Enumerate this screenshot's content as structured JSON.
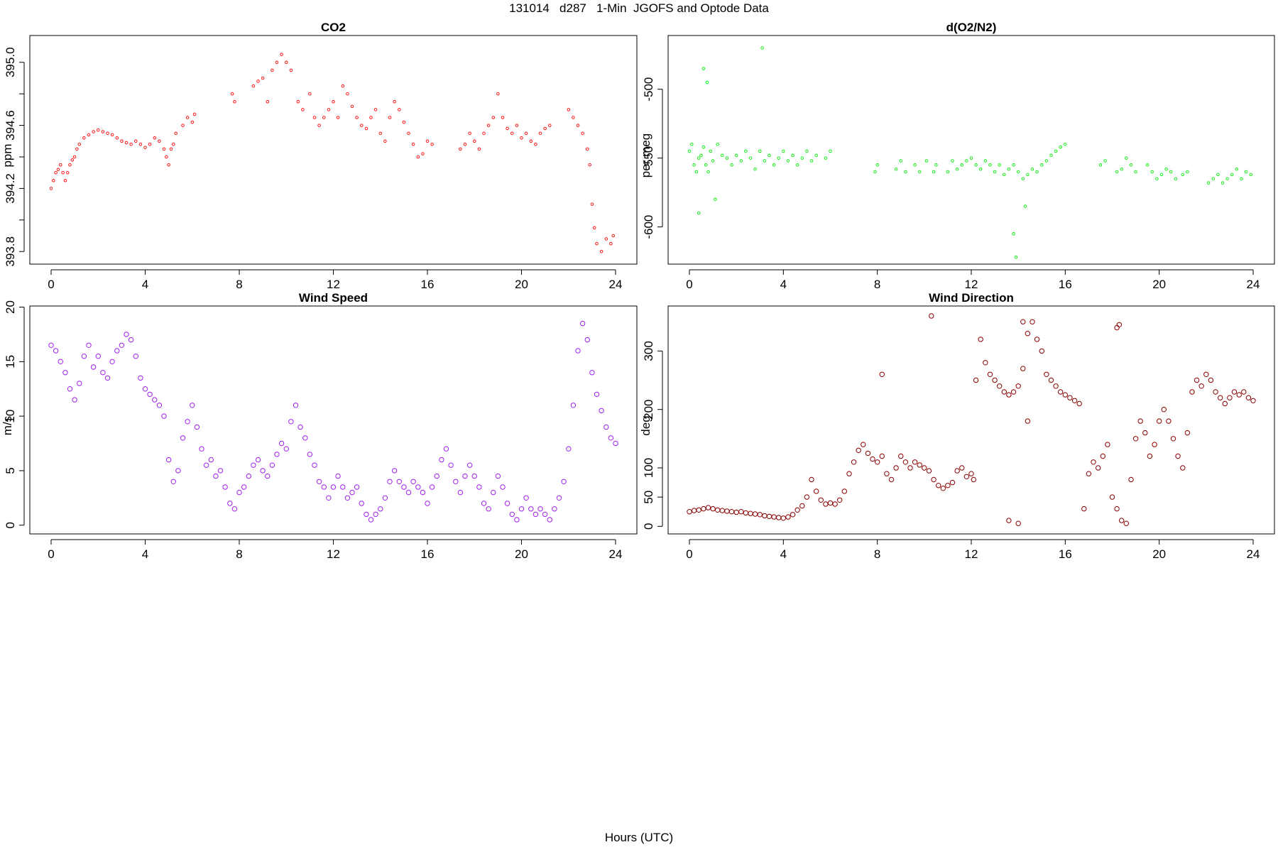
{
  "figure": {
    "title": "131014   d287   1-Min  JGOFS and Optode Data",
    "xlabel": "Hours (UTC)"
  },
  "chart_data": [
    {
      "type": "scatter",
      "title": "CO2",
      "xlabel": "",
      "ylabel": "ppm",
      "xlim": [
        0,
        24
      ],
      "ylim": [
        393.72,
        395.17
      ],
      "xticks": [
        0,
        4,
        8,
        12,
        16,
        20,
        24
      ],
      "yticks": [
        "393.8",
        "394.2",
        "394.6",
        "395.0"
      ],
      "ytick_values": [
        393.8,
        394.2,
        394.6,
        395.0
      ],
      "minor_yticks": [
        394.0,
        394.4,
        394.8
      ],
      "color": "#ff0000",
      "marker_size": "small",
      "series": [
        {
          "x": [
            0.0,
            0.1,
            0.2,
            0.3,
            0.4,
            0.5,
            0.6,
            0.7,
            0.8,
            0.9,
            1.0,
            1.1,
            1.2,
            1.4,
            1.6,
            1.8,
            2.0,
            2.2,
            2.4,
            2.6,
            2.8,
            3.0,
            3.2,
            3.4,
            3.6,
            3.8,
            4.0,
            4.2,
            4.4,
            4.6,
            4.8,
            4.9,
            5.0,
            5.1,
            5.2,
            5.3,
            5.6,
            5.8,
            6.0,
            6.1,
            7.7,
            7.8,
            8.6,
            8.8,
            9.0,
            9.2,
            9.4,
            9.6,
            9.8,
            10.0,
            10.2,
            10.5,
            10.7,
            11.0,
            11.2,
            11.4,
            11.6,
            11.8,
            12.0,
            12.2,
            12.4,
            12.6,
            12.8,
            13.0,
            13.2,
            13.4,
            13.6,
            13.8,
            14.0,
            14.2,
            14.4,
            14.6,
            14.8,
            15.0,
            15.2,
            15.4,
            15.6,
            15.8,
            16.0,
            16.2,
            17.4,
            17.6,
            17.8,
            18.0,
            18.2,
            18.4,
            18.6,
            18.8,
            19.0,
            19.2,
            19.4,
            19.6,
            19.8,
            20.0,
            20.2,
            20.4,
            20.6,
            20.8,
            21.0,
            21.2,
            22.0,
            22.2,
            22.4,
            22.6,
            22.8,
            22.9,
            23.0,
            23.1,
            23.2,
            23.4,
            23.6,
            23.8,
            23.9
          ],
          "y": [
            394.2,
            394.25,
            394.3,
            394.32,
            394.35,
            394.3,
            394.25,
            394.3,
            394.35,
            394.38,
            394.4,
            394.45,
            394.48,
            394.52,
            394.54,
            394.56,
            394.57,
            394.56,
            394.55,
            394.54,
            394.52,
            394.5,
            394.49,
            394.48,
            394.5,
            394.48,
            394.46,
            394.48,
            394.52,
            394.5,
            394.45,
            394.4,
            394.35,
            394.45,
            394.48,
            394.55,
            394.6,
            394.65,
            394.62,
            394.67,
            394.8,
            394.75,
            394.85,
            394.88,
            394.9,
            394.75,
            394.95,
            395.0,
            395.05,
            395.0,
            394.95,
            394.75,
            394.7,
            394.8,
            394.65,
            394.6,
            394.65,
            394.7,
            394.75,
            394.65,
            394.85,
            394.8,
            394.72,
            394.65,
            394.6,
            394.58,
            394.65,
            394.7,
            394.55,
            394.5,
            394.65,
            394.75,
            394.7,
            394.62,
            394.55,
            394.48,
            394.4,
            394.42,
            394.5,
            394.48,
            394.45,
            394.48,
            394.55,
            394.5,
            394.45,
            394.55,
            394.6,
            394.65,
            394.8,
            394.65,
            394.58,
            394.55,
            394.6,
            394.52,
            394.55,
            394.5,
            394.48,
            394.55,
            394.58,
            394.6,
            394.7,
            394.65,
            394.6,
            394.55,
            394.45,
            394.35,
            394.1,
            393.95,
            393.85,
            393.8,
            393.88,
            393.85,
            393.9
          ]
        }
      ]
    },
    {
      "type": "scatter",
      "title": "d(O2/N2)",
      "xlabel": "",
      "ylabel": "per meg",
      "xlim": [
        0,
        24
      ],
      "ylim": [
        -627,
        -461
      ],
      "xticks": [
        0,
        4,
        8,
        12,
        16,
        20,
        24
      ],
      "yticks": [
        "-600",
        "-550",
        "-500"
      ],
      "ytick_values": [
        -600,
        -550,
        -500
      ],
      "minor_yticks": [],
      "color": "#00ee00",
      "marker_size": "small",
      "series": [
        {
          "x": [
            0.0,
            0.1,
            0.2,
            0.3,
            0.4,
            0.5,
            0.6,
            0.7,
            0.8,
            0.9,
            1.0,
            1.2,
            1.4,
            1.6,
            1.8,
            2.0,
            2.2,
            2.4,
            2.6,
            2.8,
            3.0,
            3.2,
            3.4,
            3.6,
            3.8,
            4.0,
            4.2,
            4.4,
            4.6,
            4.8,
            5.0,
            5.2,
            5.4,
            5.8,
            6.0,
            7.9,
            8.0,
            8.8,
            9.0,
            9.2,
            9.6,
            9.8,
            10.1,
            10.4,
            10.5,
            11.0,
            11.2,
            11.4,
            11.6,
            11.8,
            12.0,
            12.2,
            12.4,
            12.6,
            12.8,
            13.0,
            13.2,
            13.4,
            13.6,
            13.8,
            14.0,
            14.2,
            14.4,
            14.6,
            14.8,
            15.0,
            15.2,
            15.4,
            15.6,
            15.8,
            16.0,
            17.5,
            17.7,
            18.2,
            18.4,
            18.6,
            18.8,
            19.0,
            19.5,
            19.7,
            19.9,
            20.1,
            20.3,
            20.5,
            20.7,
            21.0,
            21.2,
            22.1,
            22.3,
            22.5,
            22.7,
            22.9,
            23.1,
            23.3,
            23.5,
            23.7,
            23.9,
            0.6,
            0.75,
            1.1,
            3.1,
            0.4,
            13.8,
            13.9,
            14.3
          ],
          "y": [
            -545,
            -540,
            -555,
            -560,
            -550,
            -548,
            -542,
            -555,
            -560,
            -545,
            -552,
            -540,
            -548,
            -550,
            -555,
            -548,
            -552,
            -545,
            -550,
            -558,
            -545,
            -552,
            -548,
            -555,
            -550,
            -545,
            -552,
            -548,
            -555,
            -550,
            -545,
            -552,
            -548,
            -550,
            -545,
            -560,
            -555,
            -558,
            -552,
            -560,
            -555,
            -560,
            -552,
            -560,
            -555,
            -560,
            -552,
            -558,
            -555,
            -552,
            -550,
            -555,
            -558,
            -552,
            -555,
            -560,
            -555,
            -562,
            -558,
            -555,
            -560,
            -565,
            -562,
            -558,
            -560,
            -555,
            -552,
            -548,
            -545,
            -542,
            -540,
            -555,
            -552,
            -560,
            -558,
            -550,
            -555,
            -560,
            -555,
            -560,
            -565,
            -562,
            -558,
            -560,
            -565,
            -562,
            -560,
            -568,
            -565,
            -562,
            -568,
            -565,
            -562,
            -558,
            -565,
            -560,
            -562,
            -485,
            -495,
            -580,
            -470,
            -590,
            -605,
            -622,
            -585
          ]
        }
      ]
    },
    {
      "type": "scatter",
      "title": "Wind Speed",
      "xlabel": "",
      "ylabel": "m/s",
      "xlim": [
        0,
        24
      ],
      "ylim": [
        -0.8,
        20.1
      ],
      "xticks": [
        0,
        4,
        8,
        12,
        16,
        20,
        24
      ],
      "yticks": [
        "0",
        "5",
        "10",
        "15",
        "20"
      ],
      "ytick_values": [
        0,
        5,
        10,
        15,
        20
      ],
      "minor_yticks": [],
      "color": "#a020f0",
      "marker_size": "large",
      "series": [
        {
          "x": [
            0.0,
            0.2,
            0.4,
            0.6,
            0.8,
            1.0,
            1.2,
            1.4,
            1.6,
            1.8,
            2.0,
            2.2,
            2.4,
            2.6,
            2.8,
            3.0,
            3.2,
            3.4,
            3.6,
            3.8,
            4.0,
            4.2,
            4.4,
            4.6,
            4.8,
            5.0,
            5.2,
            5.4,
            5.6,
            5.8,
            6.0,
            6.2,
            6.4,
            6.6,
            6.8,
            7.0,
            7.2,
            7.4,
            7.6,
            7.8,
            8.0,
            8.2,
            8.4,
            8.6,
            8.8,
            9.0,
            9.2,
            9.4,
            9.6,
            9.8,
            10.0,
            10.2,
            10.4,
            10.6,
            10.8,
            11.0,
            11.2,
            11.4,
            11.6,
            11.8,
            12.0,
            12.2,
            12.4,
            12.6,
            12.8,
            13.0,
            13.2,
            13.4,
            13.6,
            13.8,
            14.0,
            14.2,
            14.4,
            14.6,
            14.8,
            15.0,
            15.2,
            15.4,
            15.6,
            15.8,
            16.0,
            16.2,
            16.4,
            16.6,
            16.8,
            17.0,
            17.2,
            17.4,
            17.6,
            17.8,
            18.0,
            18.2,
            18.4,
            18.6,
            18.8,
            19.0,
            19.2,
            19.4,
            19.6,
            19.8,
            20.0,
            20.2,
            20.4,
            20.6,
            20.8,
            21.0,
            21.2,
            21.4,
            21.6,
            21.8,
            22.0,
            22.2,
            22.4,
            22.6,
            22.8,
            23.0,
            23.2,
            23.4,
            23.6,
            23.8,
            24.0
          ],
          "y": [
            16.5,
            16.0,
            15.0,
            14.0,
            12.5,
            11.5,
            13.0,
            15.5,
            16.5,
            14.5,
            15.5,
            14.0,
            13.5,
            15.0,
            16.0,
            16.5,
            17.5,
            17.0,
            15.5,
            13.5,
            12.5,
            12.0,
            11.5,
            11.0,
            10.0,
            6.0,
            4.0,
            5.0,
            8.0,
            9.5,
            11.0,
            9.0,
            7.0,
            5.5,
            6.0,
            4.5,
            5.0,
            3.5,
            2.0,
            1.5,
            3.0,
            3.5,
            4.5,
            5.5,
            6.0,
            5.0,
            4.5,
            5.5,
            6.5,
            7.5,
            7.0,
            9.5,
            11.0,
            9.0,
            8.0,
            6.5,
            5.5,
            4.0,
            3.5,
            2.5,
            3.5,
            4.5,
            3.5,
            2.5,
            3.0,
            3.5,
            2.0,
            1.0,
            0.5,
            1.0,
            1.5,
            2.5,
            4.0,
            5.0,
            4.0,
            3.5,
            3.0,
            4.0,
            3.5,
            3.0,
            2.0,
            3.5,
            4.5,
            6.0,
            7.0,
            5.5,
            4.0,
            3.0,
            4.5,
            5.5,
            4.5,
            3.5,
            2.0,
            1.5,
            3.0,
            4.5,
            3.5,
            2.0,
            1.0,
            0.5,
            1.5,
            2.5,
            1.5,
            1.0,
            1.5,
            1.0,
            0.5,
            1.5,
            2.5,
            4.0,
            7.0,
            11.0,
            16.0,
            18.5,
            17.0,
            14.0,
            12.0,
            10.5,
            9.0,
            8.0,
            7.5
          ]
        }
      ]
    },
    {
      "type": "scatter",
      "title": "Wind Direction",
      "xlabel": "",
      "ylabel": "deg",
      "xlim": [
        0,
        24
      ],
      "ylim": [
        -13,
        377
      ],
      "xticks": [
        0,
        4,
        8,
        12,
        16,
        20,
        24
      ],
      "yticks": [
        "0",
        "50",
        "100",
        "200",
        "300"
      ],
      "ytick_values": [
        0,
        50,
        100,
        200,
        300
      ],
      "minor_yticks": [],
      "color": "#8b0000",
      "marker_size": "large",
      "series": [
        {
          "x": [
            0.0,
            0.2,
            0.4,
            0.6,
            0.8,
            1.0,
            1.2,
            1.4,
            1.6,
            1.8,
            2.0,
            2.2,
            2.4,
            2.6,
            2.8,
            3.0,
            3.2,
            3.4,
            3.6,
            3.8,
            4.0,
            4.2,
            4.4,
            4.6,
            4.8,
            5.0,
            5.2,
            5.4,
            5.6,
            5.8,
            6.0,
            6.2,
            6.4,
            6.6,
            6.8,
            7.0,
            7.2,
            7.4,
            7.6,
            7.8,
            8.0,
            8.2,
            8.4,
            8.6,
            8.8,
            9.0,
            9.2,
            9.4,
            9.6,
            9.8,
            10.0,
            10.2,
            10.4,
            10.6,
            10.8,
            11.0,
            11.2,
            11.4,
            11.6,
            11.8,
            12.0,
            12.1,
            12.2,
            12.4,
            12.6,
            12.8,
            13.0,
            13.2,
            13.4,
            13.6,
            13.8,
            14.0,
            14.2,
            14.4,
            14.6,
            14.8,
            15.0,
            15.2,
            15.4,
            15.6,
            15.8,
            16.0,
            16.2,
            16.4,
            16.6,
            16.8,
            17.0,
            17.2,
            17.4,
            17.6,
            17.8,
            18.0,
            18.2,
            18.4,
            18.6,
            18.8,
            19.0,
            19.2,
            19.4,
            19.6,
            19.8,
            20.0,
            20.2,
            20.4,
            20.6,
            20.8,
            21.0,
            21.2,
            21.4,
            21.6,
            21.8,
            22.0,
            22.2,
            22.4,
            22.6,
            22.8,
            23.0,
            23.2,
            23.4,
            23.6,
            23.8,
            24.0,
            8.2,
            10.3,
            13.6,
            14.0,
            14.2,
            14.4,
            18.2,
            18.3
          ],
          "y": [
            25,
            27,
            28,
            30,
            32,
            30,
            28,
            27,
            26,
            25,
            24,
            25,
            23,
            22,
            21,
            20,
            18,
            17,
            16,
            15,
            14,
            16,
            20,
            28,
            35,
            50,
            80,
            60,
            45,
            38,
            40,
            38,
            45,
            60,
            90,
            110,
            130,
            140,
            125,
            115,
            110,
            120,
            90,
            80,
            100,
            120,
            110,
            100,
            110,
            105,
            100,
            95,
            80,
            70,
            65,
            70,
            75,
            95,
            100,
            85,
            90,
            80,
            250,
            320,
            280,
            260,
            250,
            240,
            230,
            225,
            230,
            240,
            270,
            330,
            350,
            320,
            300,
            260,
            250,
            240,
            230,
            225,
            220,
            215,
            210,
            30,
            90,
            110,
            100,
            120,
            140,
            50,
            30,
            10,
            5,
            80,
            150,
            180,
            160,
            120,
            140,
            180,
            200,
            180,
            150,
            120,
            100,
            160,
            230,
            250,
            240,
            260,
            250,
            230,
            220,
            210,
            220,
            230,
            225,
            230,
            220,
            215,
            260,
            360,
            10,
            5,
            350,
            180,
            340,
            345
          ]
        }
      ]
    }
  ]
}
